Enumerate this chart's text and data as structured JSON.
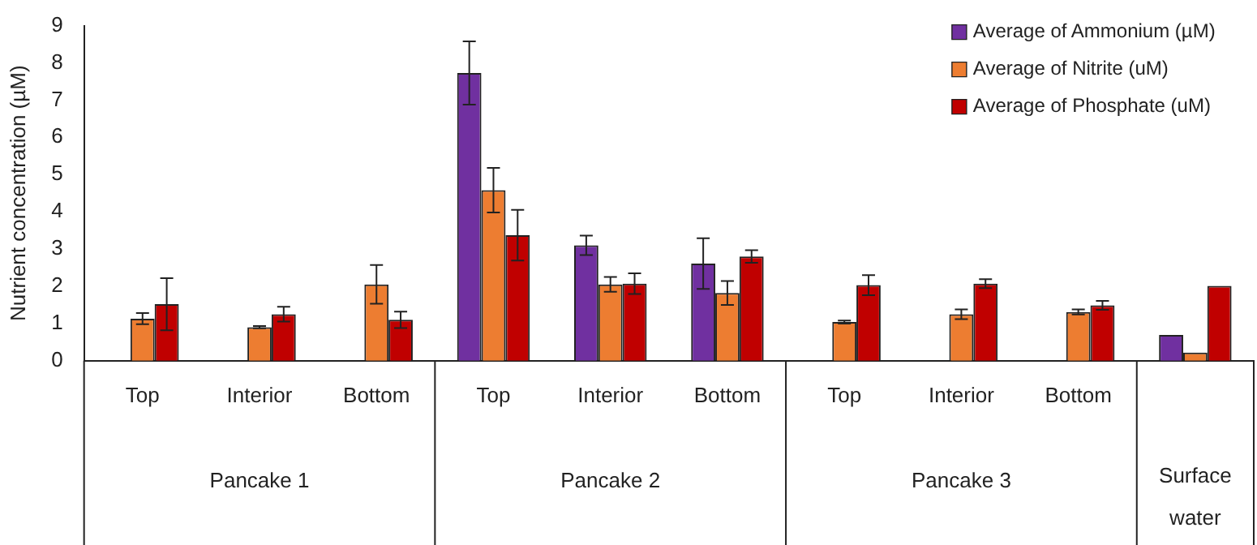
{
  "chart_data": {
    "type": "bar",
    "ylabel": "Nutrient concentration (µM)",
    "categories": [
      "Top",
      "Interior",
      "Bottom",
      "Top",
      "Interior",
      "Bottom",
      "Top",
      "Interior",
      "Bottom",
      null
    ],
    "annotations": [
      "Pancake 1",
      "Pancake 2",
      "Pancake 3",
      "Surface water"
    ],
    "series": [
      {
        "name": "Average of Ammonium (µM)",
        "color": "#7030a0",
        "values": [
          null,
          null,
          null,
          7.73,
          3.1,
          2.61,
          null,
          null,
          null,
          0.69
        ],
        "errors": [
          null,
          null,
          null,
          0.85,
          0.26,
          0.68,
          null,
          null,
          null,
          null
        ]
      },
      {
        "name": "Average of Nitrite (uM)",
        "color": "#ed7d31",
        "values": [
          1.13,
          0.9,
          2.05,
          4.58,
          2.05,
          1.82,
          1.04,
          1.25,
          1.31,
          0.22
        ],
        "errors": [
          0.15,
          0.03,
          0.52,
          0.6,
          0.2,
          0.32,
          0.04,
          0.13,
          0.07,
          null
        ]
      },
      {
        "name": "Average of Phosphate (uM)",
        "color": "#c00000",
        "values": [
          1.52,
          1.25,
          1.1,
          3.37,
          2.07,
          2.8,
          2.03,
          2.07,
          1.49,
          2.01
        ],
        "errors": [
          0.7,
          0.2,
          0.22,
          0.68,
          0.28,
          0.17,
          0.27,
          0.12,
          0.12,
          null
        ]
      }
    ],
    "ylim": [
      0,
      9
    ],
    "yticks": [
      0,
      1,
      2,
      3,
      4,
      5,
      6,
      7,
      8,
      9
    ],
    "grid": false,
    "legend": "top right"
  }
}
